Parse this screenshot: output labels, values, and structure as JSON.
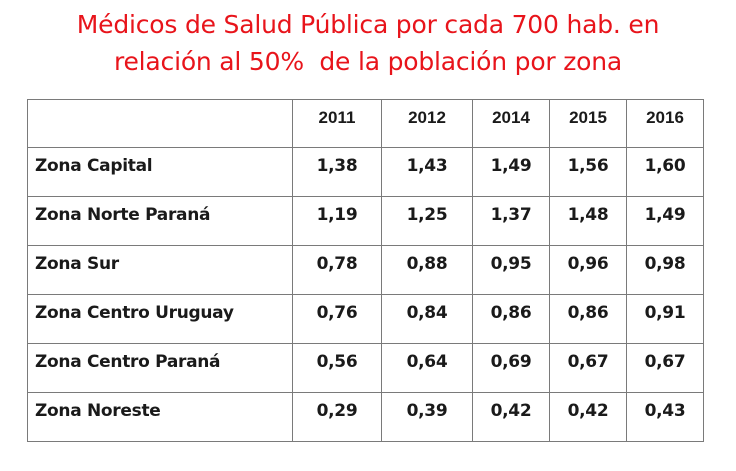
{
  "title": {
    "line1": "Médicos de Salud Pública por cada 700 hab. en",
    "line2": "relación al 50%  de la población por zona"
  },
  "colors": {
    "title": "#e8141b",
    "text": "#1a1a1a",
    "border": "#7a7a7a",
    "background": "#ffffff"
  },
  "table": {
    "corner": "",
    "columns": [
      "2011",
      "2012",
      "2014",
      "2015",
      "2016"
    ],
    "rows": [
      {
        "label": "Zona Capital",
        "values": [
          "1,38",
          "1,43",
          "1,49",
          "1,56",
          "1,60"
        ]
      },
      {
        "label": "Zona Norte Paraná",
        "values": [
          "1,19",
          "1,25",
          "1,37",
          "1,48",
          "1,49"
        ]
      },
      {
        "label": "Zona Sur",
        "values": [
          "0,78",
          "0,88",
          "0,95",
          "0,96",
          "0,98"
        ]
      },
      {
        "label": "Zona Centro Uruguay",
        "values": [
          "0,76",
          "0,84",
          "0,86",
          "0,86",
          "0,91"
        ]
      },
      {
        "label": "Zona Centro Paraná",
        "values": [
          "0,56",
          "0,64",
          "0,69",
          "0,67",
          "0,67"
        ]
      },
      {
        "label": "Zona Noreste",
        "values": [
          "0,29",
          "0,39",
          "0,42",
          "0,42",
          "0,43"
        ]
      }
    ]
  },
  "chart_data": {
    "type": "table",
    "title": "Médicos de Salud Pública por cada 700 hab. en relación al 50%  de la población por zona",
    "xlabel": "",
    "ylabel": "",
    "categories": [
      "2011",
      "2012",
      "2014",
      "2015",
      "2016"
    ],
    "series": [
      {
        "name": "Zona Capital",
        "values": [
          1.38,
          1.43,
          1.49,
          1.56,
          1.6
        ]
      },
      {
        "name": "Zona Norte Paraná",
        "values": [
          1.19,
          1.25,
          1.37,
          1.48,
          1.49
        ]
      },
      {
        "name": "Zona Sur",
        "values": [
          0.78,
          0.88,
          0.95,
          0.96,
          0.98
        ]
      },
      {
        "name": "Zona Centro Uruguay",
        "values": [
          0.76,
          0.84,
          0.86,
          0.86,
          0.91
        ]
      },
      {
        "name": "Zona Centro Paraná",
        "values": [
          0.56,
          0.64,
          0.69,
          0.67,
          0.67
        ]
      },
      {
        "name": "Zona Noreste",
        "values": [
          0.29,
          0.39,
          0.42,
          0.42,
          0.43
        ]
      }
    ],
    "grid": true,
    "legend": "none"
  }
}
